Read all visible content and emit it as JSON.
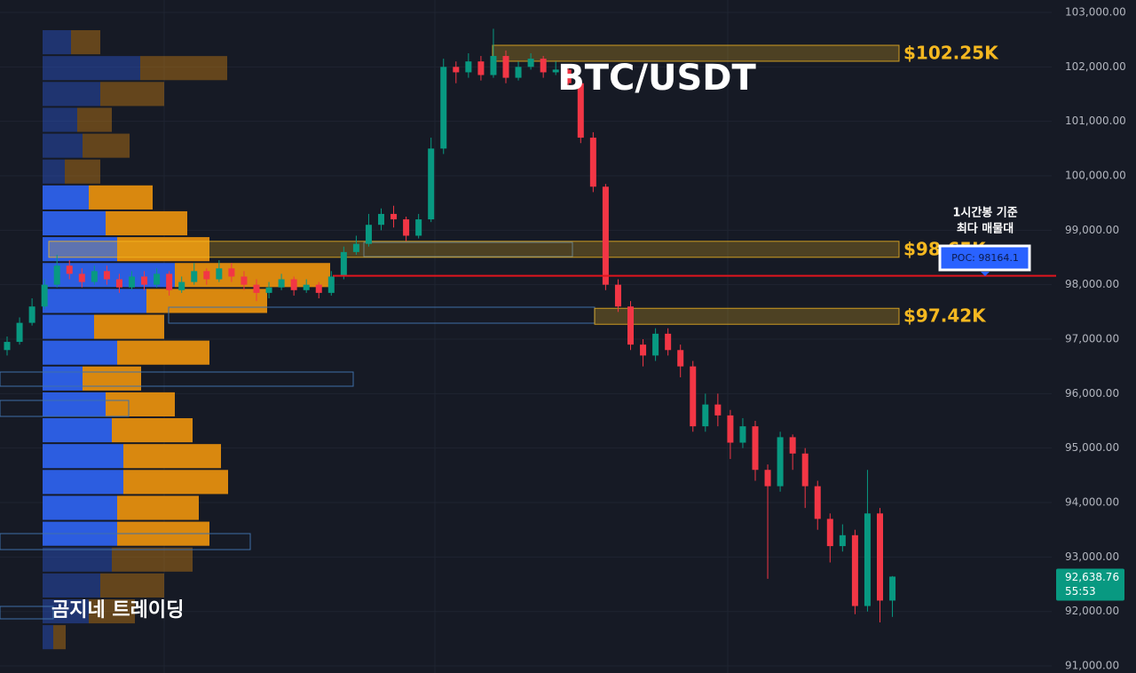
{
  "chart_data": {
    "type": "candlestick",
    "title": "BTC/USDT",
    "watermark": "곰지네 트레이딩",
    "open": [
      96800,
      96950,
      97300,
      97600,
      98000,
      98350,
      98200,
      98050,
      98250,
      98100,
      97950,
      98150,
      98000,
      98200,
      97900,
      98050,
      98250,
      98100,
      98300,
      98150,
      98000,
      97850,
      97950,
      98100,
      97900,
      98000,
      97850,
      98150,
      98600,
      98750,
      99100,
      99300,
      99200,
      98900,
      99200,
      100500,
      102000,
      101900,
      102100,
      101850,
      102200,
      101800,
      102000,
      102150,
      101900,
      101950,
      101700,
      100700,
      99800,
      98000,
      97600,
      96900,
      96700,
      97100,
      96800,
      96500,
      95400,
      95800,
      95600,
      95100,
      95400,
      94600,
      94300,
      95200,
      94900,
      94300,
      93700,
      93200,
      93400,
      92100,
      93800,
      92200
    ],
    "high": [
      97050,
      97400,
      97750,
      98100,
      98550,
      98450,
      98300,
      98350,
      98350,
      98200,
      98250,
      98250,
      98300,
      98250,
      98150,
      98400,
      98300,
      98450,
      98400,
      98250,
      98100,
      98050,
      98200,
      98150,
      98100,
      98050,
      98250,
      98700,
      98900,
      99300,
      99400,
      99450,
      99250,
      99300,
      100700,
      102150,
      102100,
      102250,
      102200,
      102700,
      102300,
      102100,
      102250,
      102200,
      102100,
      102000,
      101750,
      100800,
      99850,
      98100,
      97700,
      97000,
      97200,
      97200,
      96900,
      96600,
      96000,
      96000,
      95700,
      95550,
      95500,
      94700,
      95300,
      95250,
      95000,
      94400,
      93800,
      93600,
      93500,
      94600,
      93900,
      92650
    ],
    "low": [
      96700,
      96900,
      97250,
      97550,
      97950,
      98100,
      97950,
      98000,
      98000,
      97850,
      97900,
      97900,
      97950,
      97800,
      97850,
      98000,
      98000,
      98050,
      98050,
      97900,
      97700,
      97750,
      97900,
      97800,
      97850,
      97750,
      97800,
      98100,
      98550,
      98700,
      99000,
      99050,
      98800,
      98850,
      99150,
      100400,
      101700,
      101800,
      101750,
      101800,
      101700,
      101750,
      101950,
      101800,
      101850,
      101600,
      100600,
      99700,
      97900,
      97500,
      96800,
      96500,
      96600,
      96700,
      96300,
      95300,
      95300,
      95400,
      94800,
      95000,
      94400,
      92600,
      94200,
      94600,
      93900,
      93500,
      92900,
      93100,
      91950,
      92000,
      91800,
      91900
    ],
    "close": [
      96950,
      97300,
      97600,
      98000,
      98350,
      98200,
      98050,
      98250,
      98100,
      97950,
      98150,
      98000,
      98200,
      97900,
      98050,
      98250,
      98100,
      98300,
      98150,
      98000,
      97850,
      97950,
      98100,
      97900,
      98000,
      97850,
      98150,
      98600,
      98750,
      99100,
      99300,
      99200,
      98900,
      99200,
      100500,
      102000,
      101900,
      102100,
      101850,
      102200,
      101800,
      102000,
      102150,
      101900,
      101950,
      101700,
      100700,
      99800,
      98000,
      97600,
      96900,
      96700,
      97100,
      96800,
      96500,
      95400,
      95800,
      95600,
      95100,
      95400,
      94600,
      94300,
      95200,
      94900,
      94300,
      93700,
      93200,
      93400,
      92100,
      93800,
      92200,
      92640
    ],
    "up_color": "#089981",
    "down_color": "#f23645",
    "ylim": [
      90870,
      103228
    ],
    "yticks": [
      {
        "value": 91000,
        "label": "91,000.00"
      },
      {
        "value": 92000,
        "label": "92,000.00"
      },
      {
        "value": 93000,
        "label": "93,000.00"
      },
      {
        "value": 94000,
        "label": "94,000.00"
      },
      {
        "value": 95000,
        "label": "95,000.00"
      },
      {
        "value": 96000,
        "label": "96,000.00"
      },
      {
        "value": 97000,
        "label": "97,000.00"
      },
      {
        "value": 98000,
        "label": "98,000.00"
      },
      {
        "value": 99000,
        "label": "99,000.00"
      },
      {
        "value": 100000,
        "label": "100,000.00"
      },
      {
        "value": 101000,
        "label": "101,000.00"
      },
      {
        "value": 102000,
        "label": "102,000.00"
      },
      {
        "value": 103000,
        "label": "103,000.00"
      }
    ],
    "grid": true,
    "levels": [
      {
        "value": 102250,
        "label": "$102.25K"
      },
      {
        "value": 98650,
        "label": "$98.65K"
      },
      {
        "value": 97420,
        "label": "$97.42K"
      }
    ],
    "level_color": "#f5b820",
    "poc": {
      "value": 98164.1,
      "label": "POC: 98164.1",
      "color": "#e0141e"
    },
    "annotation": [
      "1시간봉 기준",
      "최다 매물대"
    ],
    "last_price": {
      "value": 92638.76,
      "label": "92,638.76",
      "countdown": "55:53"
    },
    "volume_profile": {
      "bins": [
        102690,
        102215,
        101740,
        101265,
        100790,
        100315,
        99840,
        99365,
        98890,
        98415,
        97940,
        97465,
        96990,
        96515,
        96040,
        95565,
        95090,
        94615,
        94140,
        93665,
        93190,
        92715,
        92240,
        91765,
        91290
      ],
      "buy": [
        32,
        110,
        65,
        39,
        45,
        25,
        52,
        71,
        84,
        149,
        117,
        58,
        84,
        45,
        71,
        78,
        91,
        91,
        84,
        84,
        78,
        65,
        52,
        12
      ],
      "sell": [
        33,
        98,
        72,
        39,
        53,
        40,
        72,
        92,
        104,
        175,
        136,
        79,
        104,
        66,
        78,
        91,
        110,
        118,
        92,
        104,
        91,
        72,
        52,
        14
      ],
      "value_area": [
        93190,
        99840
      ],
      "buy_color": "#2c5de0",
      "sell_color": "#d9880f"
    }
  }
}
